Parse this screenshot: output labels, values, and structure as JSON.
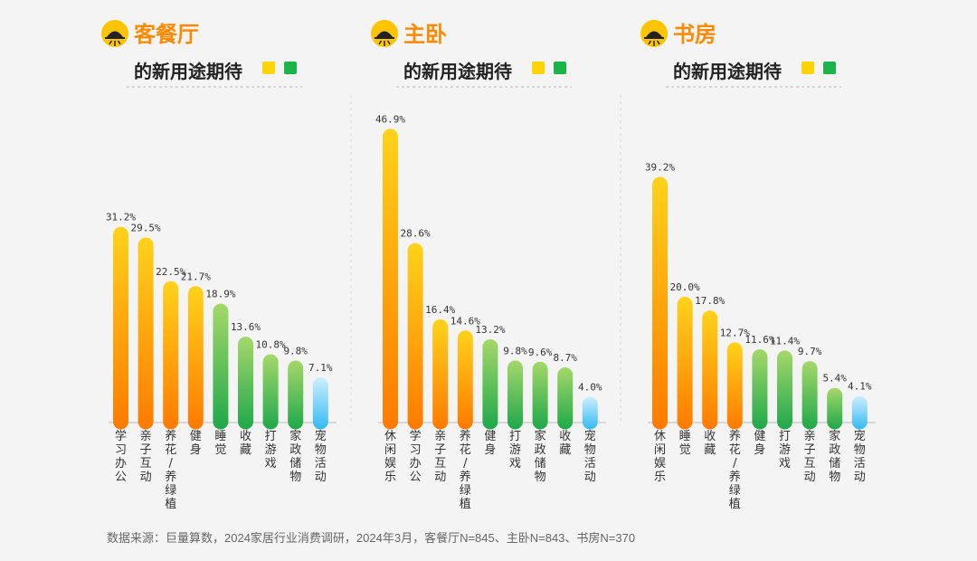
{
  "panels_meta": [
    {
      "title": "客餐厅",
      "subtitle": "的新用途期待"
    },
    {
      "title": "主卧",
      "subtitle": "的新用途期待"
    },
    {
      "title": "书房",
      "subtitle": "的新用途期待"
    }
  ],
  "colors": {
    "orange_top": "#ffd21a",
    "orange_bottom": "#ff7a00",
    "green_top": "#a5d86a",
    "green_bottom": "#1ea84a",
    "blue_top": "#cdefff",
    "blue_bottom": "#35b9f0",
    "legend_yellow": "#ffd400",
    "legend_green": "#1db34b",
    "title": "#ff8a00"
  },
  "source": "数据来源：巨量算数，2024家居行业消费调研，2024年3月，客餐厅N=845、主卧N=843、书房N=370",
  "chart_data": [
    {
      "type": "bar",
      "title": "客餐厅 的新用途期待",
      "categories": [
        "学习办公",
        "亲子互动",
        "养花/养绿植",
        "健身",
        "睡觉",
        "收藏",
        "打游戏",
        "家政储物",
        "宠物活动"
      ],
      "values": [
        31.2,
        29.5,
        22.5,
        21.7,
        18.9,
        13.6,
        10.8,
        9.8,
        7.1
      ],
      "labels": [
        "31.2%",
        "29.5%",
        "22.5%",
        "21.7%",
        "18.9%",
        "13.6%",
        "10.8%",
        "9.8%",
        "7.1%"
      ],
      "color_groups": [
        "orange",
        "orange",
        "orange",
        "orange",
        "green",
        "green",
        "green",
        "green",
        "blue"
      ],
      "ylim": [
        0,
        50
      ]
    },
    {
      "type": "bar",
      "title": "主卧 的新用途期待",
      "categories": [
        "休闲娱乐",
        "学习办公",
        "亲子互动",
        "养花/养绿植",
        "健身",
        "打游戏",
        "家政储物",
        "收藏",
        "宠物活动"
      ],
      "values": [
        46.9,
        28.6,
        16.4,
        14.6,
        13.2,
        9.8,
        9.6,
        8.7,
        4.0
      ],
      "labels": [
        "46.9%",
        "28.6%",
        "16.4%",
        "14.6%",
        "13.2%",
        "9.8%",
        "9.6%",
        "8.7%",
        "4.0%"
      ],
      "color_groups": [
        "orange",
        "orange",
        "orange",
        "orange",
        "green",
        "green",
        "green",
        "green",
        "blue"
      ],
      "ylim": [
        0,
        50
      ]
    },
    {
      "type": "bar",
      "title": "书房 的新用途期待",
      "categories": [
        "休闲娱乐",
        "睡觉",
        "收藏",
        "养花/养绿植",
        "健身",
        "打游戏",
        "亲子互动",
        "家政储物",
        "宠物活动"
      ],
      "values": [
        39.2,
        20.0,
        17.8,
        12.7,
        11.6,
        11.4,
        9.7,
        5.4,
        4.1
      ],
      "labels": [
        "39.2%",
        "20.0%",
        "17.8%",
        "12.7%",
        "11.6%",
        "11.4%",
        "9.7%",
        "5.4%",
        "4.1%"
      ],
      "color_groups": [
        "orange",
        "orange",
        "orange",
        "orange",
        "green",
        "green",
        "green",
        "green",
        "blue"
      ],
      "ylim": [
        0,
        50
      ]
    }
  ]
}
